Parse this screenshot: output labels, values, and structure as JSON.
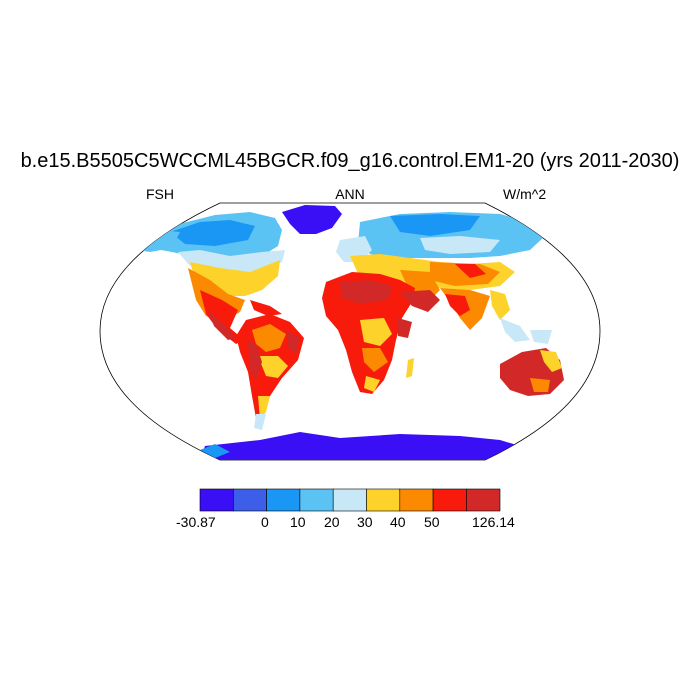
{
  "title": "b.e15.B5505C5WCCML45BGCR.f09_g16.control.EM1-20 (yrs 2011-2030)",
  "subtitles": {
    "left": "FSH",
    "center": "ANN",
    "right": "W/m^2"
  },
  "colorbar": {
    "colors": [
      "#3a0ff5",
      "#3d5ee8",
      "#1a96f5",
      "#5bc3f4",
      "#c8e8f8",
      "#fdd22b",
      "#fb8a00",
      "#f81a0b",
      "#d22828"
    ],
    "labels": [
      "-30.87",
      "0",
      "10",
      "20",
      "30",
      "40",
      "50",
      "126.14"
    ]
  }
}
